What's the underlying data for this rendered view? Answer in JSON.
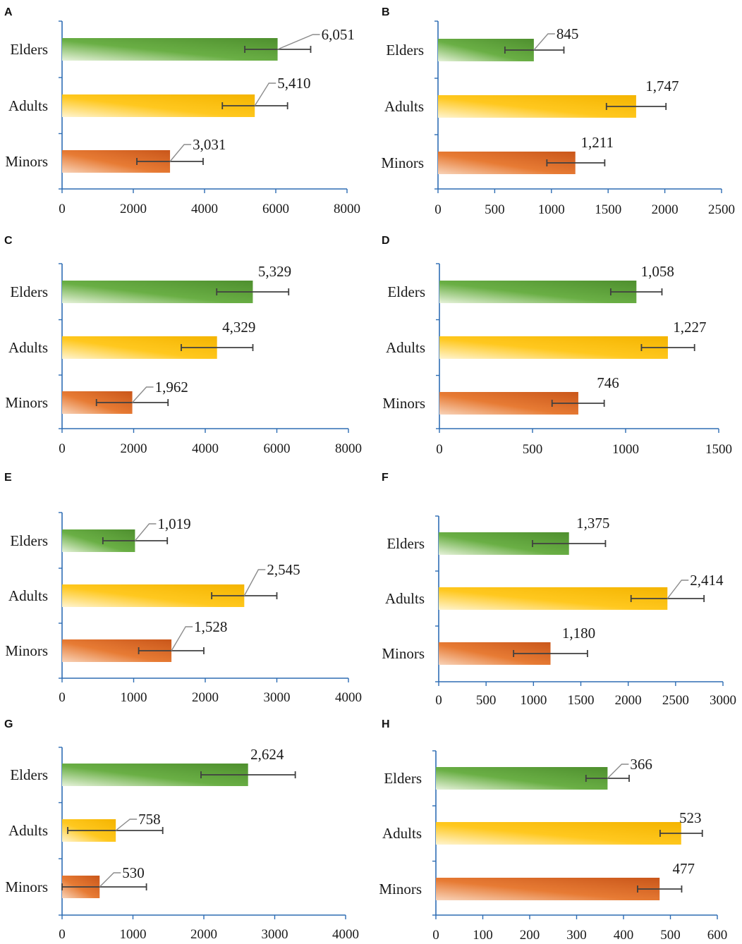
{
  "colors": {
    "axis": "#2E6DB4",
    "error_bar": "#404040",
    "leader": "#8C8C8C",
    "text": "#1a1a1a",
    "elders": {
      "dark": "#4E8F2E",
      "mid": "#6AAF45",
      "light": "#E6F2DA"
    },
    "adults": {
      "dark": "#F4B400",
      "mid": "#FFC81F",
      "light": "#FFF4CF"
    },
    "minors": {
      "dark": "#C9561A",
      "mid": "#E77B34",
      "light": "#F8D3B9"
    }
  },
  "chart_data": [
    {
      "panel": "A",
      "type": "bar",
      "orientation": "horizontal",
      "categories": [
        "Elders",
        "Adults",
        "Minors"
      ],
      "values": [
        6051,
        5410,
        3031
      ],
      "value_labels": [
        "6,051",
        "5,410",
        "3,031"
      ],
      "error_low": [
        5130,
        4500,
        2100
      ],
      "error_high": [
        6980,
        6330,
        3960
      ],
      "xlim": [
        0,
        8000
      ],
      "ticks": [
        0,
        2000,
        4000,
        6000,
        8000
      ],
      "tick_labels": [
        "0",
        "2000",
        "4000",
        "6000",
        "8000"
      ]
    },
    {
      "panel": "B",
      "type": "bar",
      "orientation": "horizontal",
      "categories": [
        "Elders",
        "Adults",
        "Minors"
      ],
      "values": [
        845,
        1747,
        1211
      ],
      "value_labels": [
        "845",
        "1,747",
        "1,211"
      ],
      "error_low": [
        590,
        1485,
        960
      ],
      "error_high": [
        1110,
        2010,
        1470
      ],
      "xlim": [
        0,
        2500
      ],
      "ticks": [
        0,
        500,
        1000,
        1500,
        2000,
        2500
      ],
      "tick_labels": [
        "0",
        "500",
        "1000",
        "1500",
        "2000",
        "2500"
      ]
    },
    {
      "panel": "C",
      "type": "bar",
      "orientation": "horizontal",
      "categories": [
        "Elders",
        "Adults",
        "Minors"
      ],
      "values": [
        5329,
        4329,
        1962
      ],
      "value_labels": [
        "5,329",
        "4,329",
        "1,962"
      ],
      "error_low": [
        4320,
        3330,
        960
      ],
      "error_high": [
        6330,
        5330,
        2960
      ],
      "xlim": [
        0,
        8000
      ],
      "ticks": [
        0,
        2000,
        4000,
        6000,
        8000
      ],
      "tick_labels": [
        "0",
        "2000",
        "4000",
        "6000",
        "8000"
      ]
    },
    {
      "panel": "D",
      "type": "bar",
      "orientation": "horizontal",
      "categories": [
        "Elders",
        "Adults",
        "Minors"
      ],
      "values": [
        1058,
        1227,
        746
      ],
      "value_labels": [
        "1,058",
        "1,227",
        "746"
      ],
      "error_low": [
        920,
        1085,
        605
      ],
      "error_high": [
        1195,
        1370,
        885
      ],
      "xlim": [
        0,
        1500
      ],
      "ticks": [
        0,
        500,
        1000,
        1500
      ],
      "tick_labels": [
        "0",
        "500",
        "1000",
        "1500"
      ]
    },
    {
      "panel": "E",
      "type": "bar",
      "orientation": "horizontal",
      "categories": [
        "Elders",
        "Adults",
        "Minors"
      ],
      "values": [
        1019,
        2545,
        1528
      ],
      "value_labels": [
        "1,019",
        "2,545",
        "1,528"
      ],
      "error_low": [
        570,
        2090,
        1070
      ],
      "error_high": [
        1470,
        3000,
        1980
      ],
      "xlim": [
        0,
        4000
      ],
      "ticks": [
        0,
        1000,
        2000,
        3000,
        4000
      ],
      "tick_labels": [
        "0",
        "1000",
        "2000",
        "3000",
        "4000"
      ]
    },
    {
      "panel": "F",
      "type": "bar",
      "orientation": "horizontal",
      "categories": [
        "Elders",
        "Adults",
        "Minors"
      ],
      "values": [
        1375,
        2414,
        1180
      ],
      "value_labels": [
        "1,375",
        "2,414",
        "1,180"
      ],
      "error_low": [
        990,
        2030,
        790
      ],
      "error_high": [
        1760,
        2800,
        1570
      ],
      "xlim": [
        0,
        3000
      ],
      "ticks": [
        0,
        500,
        1000,
        1500,
        2000,
        2500,
        3000
      ],
      "tick_labels": [
        "0",
        "500",
        "1000",
        "1500",
        "2000",
        "2500",
        "3000"
      ]
    },
    {
      "panel": "G",
      "type": "bar",
      "orientation": "horizontal",
      "categories": [
        "Elders",
        "Adults",
        "Minors"
      ],
      "values": [
        2624,
        758,
        530
      ],
      "value_labels": [
        "2,624",
        "758",
        "530"
      ],
      "error_low": [
        1960,
        80,
        0
      ],
      "error_high": [
        3290,
        1420,
        1190
      ],
      "xlim": [
        0,
        4000
      ],
      "ticks": [
        0,
        1000,
        2000,
        3000,
        4000
      ],
      "tick_labels": [
        "0",
        "1000",
        "2000",
        "3000",
        "4000"
      ]
    },
    {
      "panel": "H",
      "type": "bar",
      "orientation": "horizontal",
      "categories": [
        "Elders",
        "Adults",
        "Minors"
      ],
      "values": [
        366,
        523,
        477
      ],
      "value_labels": [
        "366",
        "523",
        "477"
      ],
      "error_low": [
        320,
        478,
        430
      ],
      "error_high": [
        412,
        568,
        524
      ],
      "xlim": [
        0,
        600
      ],
      "ticks": [
        0,
        100,
        200,
        300,
        400,
        500,
        600
      ],
      "tick_labels": [
        "0",
        "100",
        "200",
        "300",
        "400",
        "500",
        "600"
      ]
    }
  ]
}
